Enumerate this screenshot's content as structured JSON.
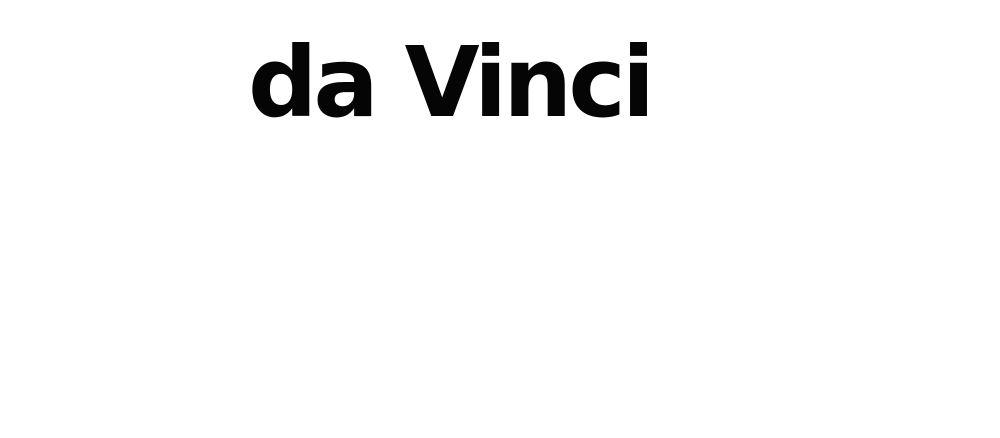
{
  "wordmark": {
    "text": "da Vinci",
    "color": "#050505"
  },
  "background_color": "#ffffff"
}
